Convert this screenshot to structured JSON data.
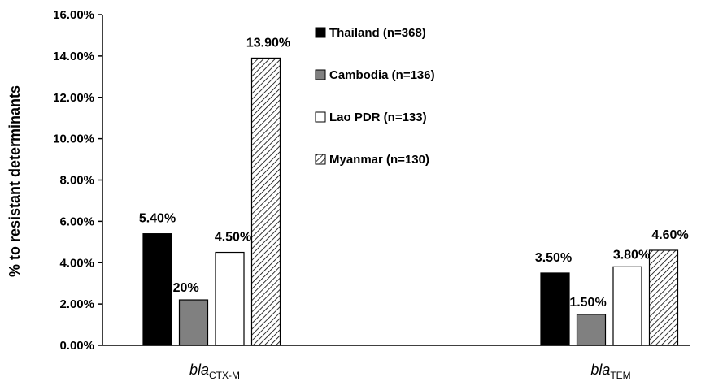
{
  "chart_data": {
    "type": "bar",
    "ylabel": "% to resistant determinants",
    "ylim": [
      0,
      16
    ],
    "y_ticks": [
      "0.00%",
      "2.00%",
      "4.00%",
      "6.00%",
      "8.00%",
      "10.00%",
      "12.00%",
      "14.00%",
      "16.00%"
    ],
    "categories": [
      {
        "italic": "bla",
        "sub": "CTX-M"
      },
      {
        "italic": "bla",
        "sub": "TEM"
      }
    ],
    "series": [
      {
        "name": "Thailand (n=368)",
        "values": [
          5.4,
          3.5
        ],
        "labels": [
          "5.40%",
          "3.50%"
        ],
        "fill": "#000000"
      },
      {
        "name": "Cambodia (n=136)",
        "values": [
          2.2,
          1.5
        ],
        "labels": [
          "2.20%",
          "1.50%"
        ],
        "fill": "#808080"
      },
      {
        "name": "Lao PDR (n=133)",
        "values": [
          4.5,
          3.8
        ],
        "labels": [
          "4.50%",
          "3.80%"
        ],
        "fill": "#ffffff"
      },
      {
        "name": "Myanmar (n=130)",
        "values": [
          13.9,
          4.6
        ],
        "labels": [
          "13.90%",
          "4.60%"
        ],
        "fill": "hatch"
      }
    ],
    "legend_position": "top-right inside plot",
    "grid": false
  }
}
